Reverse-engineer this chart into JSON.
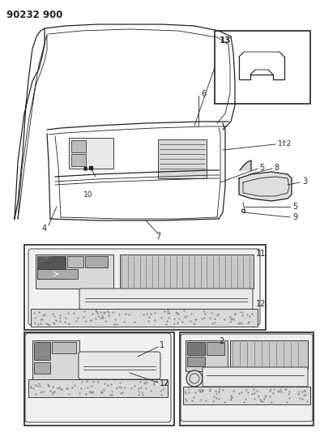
{
  "title": "90232 900",
  "bg_color": "#ffffff",
  "fig_width": 3.95,
  "fig_height": 5.33,
  "dpi": 100,
  "line_color": "#222222",
  "gray_light": "#cccccc",
  "gray_mid": "#aaaaaa",
  "gray_dark": "#888888"
}
